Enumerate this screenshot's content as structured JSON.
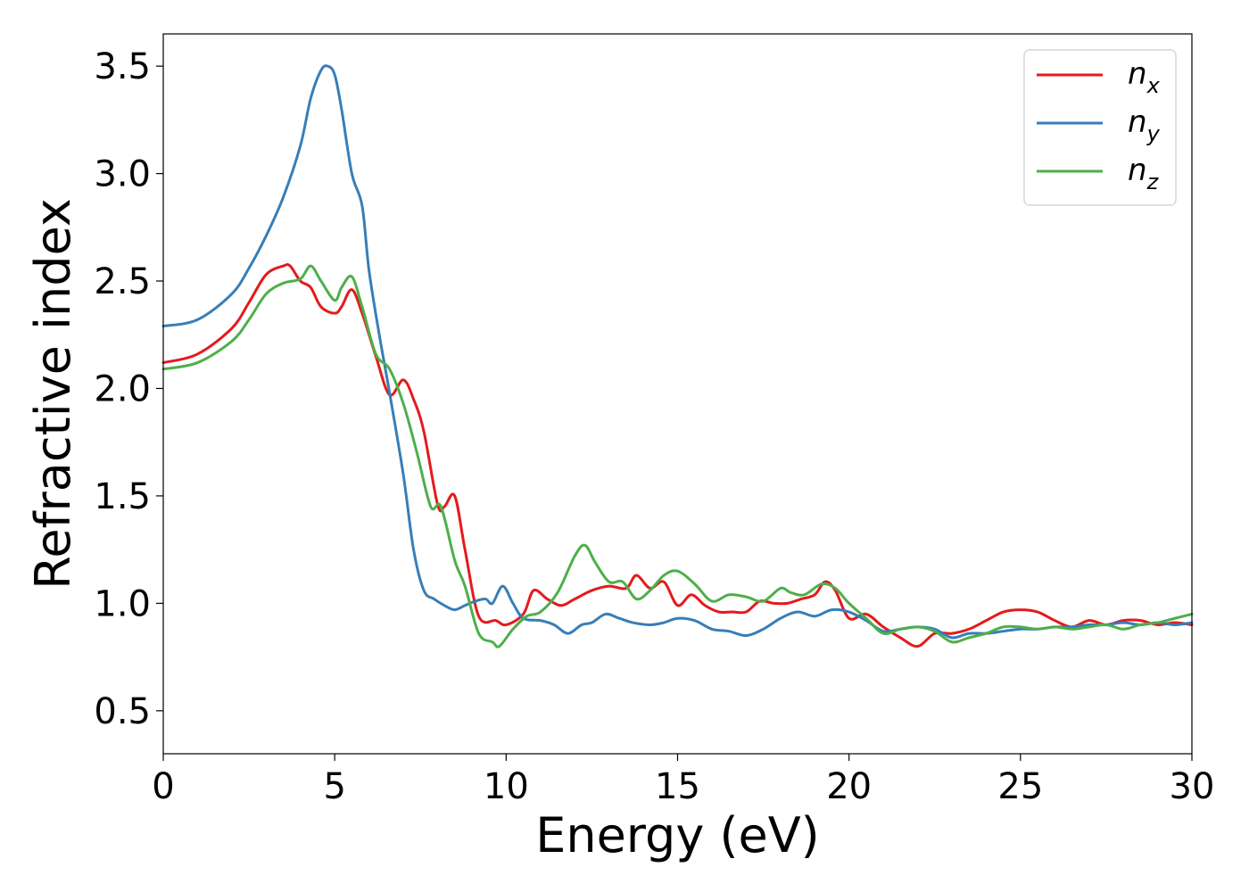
{
  "chart_data": {
    "type": "line",
    "xlabel": "Energy (eV)",
    "ylabel": "Refractive index",
    "xlim": [
      0,
      30
    ],
    "ylim": [
      0.3,
      3.65
    ],
    "x_ticks": [
      0,
      5,
      10,
      15,
      20,
      25,
      30
    ],
    "y_ticks": [
      0.5,
      1.0,
      1.5,
      2.0,
      2.5,
      3.0,
      3.5
    ],
    "x_tick_labels": [
      "0",
      "5",
      "10",
      "15",
      "20",
      "25",
      "30"
    ],
    "y_tick_labels": [
      "0.5",
      "1.0",
      "1.5",
      "2.0",
      "2.5",
      "3.0",
      "3.5"
    ],
    "grid": false,
    "legend_position": "top-right",
    "series": [
      {
        "name": "n_x",
        "label_main": "n",
        "label_sub": "x",
        "color": "#e41a1c",
        "x": [
          0,
          1,
          2,
          2.5,
          3,
          3.5,
          3.7,
          4,
          4.3,
          4.6,
          5,
          5.2,
          5.5,
          5.8,
          6.2,
          6.6,
          7,
          7.3,
          7.6,
          8,
          8.2,
          8.5,
          8.8,
          9.2,
          9.7,
          10,
          10.5,
          10.8,
          11.2,
          11.6,
          12,
          12.5,
          13,
          13.5,
          13.8,
          14.2,
          14.6,
          15,
          15.4,
          15.8,
          16.2,
          16.6,
          17,
          17.4,
          17.8,
          18.2,
          18.6,
          19,
          19.3,
          19.6,
          20,
          20.5,
          21,
          21.5,
          22,
          22.5,
          23,
          23.5,
          24,
          24.5,
          25,
          25.5,
          26,
          26.5,
          27,
          27.5,
          28,
          28.5,
          29,
          29.5,
          30
        ],
        "y": [
          2.12,
          2.16,
          2.28,
          2.4,
          2.53,
          2.57,
          2.57,
          2.5,
          2.47,
          2.38,
          2.35,
          2.38,
          2.46,
          2.35,
          2.15,
          1.97,
          2.04,
          1.95,
          1.8,
          1.46,
          1.45,
          1.5,
          1.25,
          0.94,
          0.92,
          0.9,
          0.95,
          1.06,
          1.02,
          0.99,
          1.02,
          1.06,
          1.08,
          1.07,
          1.13,
          1.07,
          1.1,
          0.99,
          1.04,
          0.99,
          0.96,
          0.96,
          0.96,
          1.01,
          1.0,
          1.0,
          1.02,
          1.04,
          1.1,
          1.06,
          0.93,
          0.95,
          0.89,
          0.84,
          0.8,
          0.86,
          0.86,
          0.88,
          0.92,
          0.96,
          0.97,
          0.96,
          0.92,
          0.89,
          0.92,
          0.9,
          0.92,
          0.92,
          0.9,
          0.91,
          0.9
        ]
      },
      {
        "name": "n_y",
        "label_main": "n",
        "label_sub": "y",
        "color": "#377eb8",
        "x": [
          0,
          1,
          2,
          2.5,
          3,
          3.5,
          4,
          4.3,
          4.6,
          4.8,
          5,
          5.2,
          5.5,
          5.8,
          6,
          6.3,
          6.6,
          7,
          7.3,
          7.6,
          7.9,
          8.2,
          8.5,
          8.8,
          9.1,
          9.4,
          9.6,
          9.9,
          10.2,
          10.5,
          11,
          11.4,
          11.8,
          12.2,
          12.5,
          12.9,
          13.3,
          13.7,
          14.2,
          14.6,
          15,
          15.5,
          16,
          16.5,
          17,
          17.5,
          18,
          18.5,
          19,
          19.5,
          20,
          20.5,
          21,
          21.5,
          22,
          22.5,
          23,
          23.5,
          24,
          24.5,
          25,
          25.5,
          26,
          26.5,
          27,
          27.5,
          28,
          28.5,
          29,
          29.5,
          30
        ],
        "y": [
          2.29,
          2.32,
          2.44,
          2.56,
          2.71,
          2.89,
          3.13,
          3.35,
          3.48,
          3.5,
          3.46,
          3.3,
          3.0,
          2.85,
          2.55,
          2.25,
          1.98,
          1.6,
          1.25,
          1.06,
          1.02,
          0.99,
          0.97,
          0.99,
          1.01,
          1.02,
          1.0,
          1.08,
          1.0,
          0.93,
          0.92,
          0.9,
          0.86,
          0.9,
          0.91,
          0.95,
          0.93,
          0.91,
          0.9,
          0.91,
          0.93,
          0.92,
          0.88,
          0.87,
          0.85,
          0.88,
          0.93,
          0.96,
          0.94,
          0.97,
          0.96,
          0.92,
          0.87,
          0.88,
          0.89,
          0.88,
          0.84,
          0.86,
          0.86,
          0.87,
          0.88,
          0.88,
          0.89,
          0.89,
          0.9,
          0.9,
          0.91,
          0.9,
          0.91,
          0.9,
          0.91
        ]
      },
      {
        "name": "n_z",
        "label_main": "n",
        "label_sub": "z",
        "color": "#4daf4a",
        "x": [
          0,
          1,
          2,
          2.5,
          3,
          3.5,
          4,
          4.3,
          4.6,
          5,
          5.2,
          5.5,
          5.8,
          6.2,
          6.6,
          7,
          7.4,
          7.8,
          8.1,
          8.5,
          8.8,
          9.2,
          9.6,
          9.8,
          10.2,
          10.6,
          11,
          11.5,
          12,
          12.3,
          12.6,
          13,
          13.4,
          13.8,
          14.2,
          14.6,
          15,
          15.5,
          16,
          16.5,
          17,
          17.5,
          18,
          18.3,
          18.7,
          19.2,
          19.6,
          20,
          20.5,
          21,
          21.5,
          22,
          22.5,
          23,
          23.5,
          24,
          24.5,
          25,
          25.5,
          26,
          26.5,
          27,
          27.5,
          28,
          28.5,
          29,
          29.5,
          30
        ],
        "y": [
          2.09,
          2.12,
          2.22,
          2.32,
          2.44,
          2.49,
          2.51,
          2.57,
          2.5,
          2.41,
          2.47,
          2.52,
          2.38,
          2.16,
          2.09,
          1.93,
          1.7,
          1.45,
          1.45,
          1.2,
          1.08,
          0.86,
          0.82,
          0.8,
          0.88,
          0.94,
          0.96,
          1.05,
          1.22,
          1.27,
          1.19,
          1.1,
          1.1,
          1.02,
          1.06,
          1.13,
          1.15,
          1.09,
          1.01,
          1.04,
          1.03,
          1.01,
          1.07,
          1.05,
          1.04,
          1.09,
          1.07,
          1.0,
          0.93,
          0.86,
          0.88,
          0.89,
          0.87,
          0.82,
          0.84,
          0.86,
          0.89,
          0.89,
          0.88,
          0.89,
          0.88,
          0.89,
          0.9,
          0.88,
          0.9,
          0.91,
          0.93,
          0.95
        ]
      }
    ]
  }
}
